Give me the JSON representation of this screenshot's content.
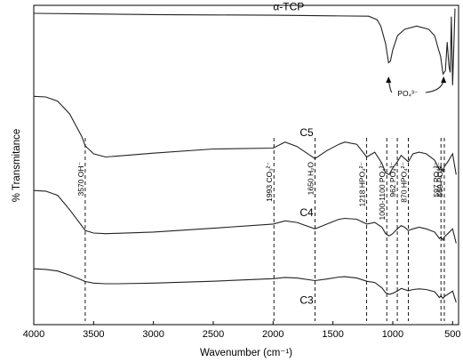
{
  "chart_data": {
    "type": "line",
    "title": "",
    "xlabel": "Wavenumber (cm⁻¹)",
    "ylabel": "% Transmitance",
    "xlim": [
      4000,
      450
    ],
    "x_ticks": [
      "4000",
      "3500",
      "3000",
      "2500",
      "2000",
      "1500",
      "1000",
      "500"
    ],
    "x_tick_values": [
      4000,
      3500,
      3000,
      2500,
      2000,
      1500,
      1000,
      500
    ],
    "grid": false,
    "legend": "none",
    "series": [
      {
        "name": "α-TCP",
        "x": [
          4000,
          3500,
          3000,
          2500,
          2000,
          1500,
          1200,
          1130,
          1100,
          1060,
          1035,
          1020,
          1000,
          960,
          900,
          800,
          700,
          650,
          620,
          600,
          580,
          560,
          545,
          530,
          520,
          510,
          500,
          480
        ],
        "y": [
          97.5,
          97.3,
          97.1,
          97.0,
          96.9,
          96.7,
          96.6,
          95.5,
          93.5,
          88.0,
          82.0,
          82.5,
          86.0,
          90.5,
          92.5,
          93.5,
          92.5,
          90.5,
          86.5,
          84.0,
          78.5,
          79.5,
          88.5,
          81.0,
          79.0,
          96.5,
          75.0,
          99.0
        ]
      },
      {
        "name": "C5",
        "x": [
          4000,
          3900,
          3800,
          3700,
          3600,
          3570,
          3500,
          3400,
          3300,
          3000,
          2500,
          2000,
          1900,
          1800,
          1650,
          1550,
          1450,
          1400,
          1300,
          1218,
          1150,
          1090,
          1060,
          1030,
          1000,
          962,
          930,
          900,
          870,
          830,
          780,
          720,
          650,
          610,
          597,
          580,
          569,
          540,
          500,
          470
        ],
        "y": [
          71.5,
          71.3,
          70.0,
          66.0,
          59.0,
          56.0,
          53.5,
          52.5,
          52.8,
          53.7,
          55.0,
          55.3,
          57.2,
          55.8,
          52.0,
          54.5,
          56.5,
          57.2,
          56.5,
          52.5,
          54.0,
          50.5,
          47.5,
          47.0,
          49.0,
          51.0,
          53.0,
          52.0,
          51.0,
          53.5,
          54.0,
          53.5,
          51.5,
          48.5,
          49.5,
          48.0,
          49.5,
          51.0,
          53.5,
          47.0
        ]
      },
      {
        "name": "C4",
        "x": [
          4000,
          3900,
          3800,
          3700,
          3600,
          3570,
          3500,
          3400,
          3300,
          3000,
          2500,
          2000,
          1900,
          1800,
          1650,
          1550,
          1450,
          1400,
          1300,
          1218,
          1150,
          1090,
          1060,
          1030,
          1000,
          962,
          930,
          900,
          870,
          830,
          780,
          720,
          650,
          610,
          597,
          580,
          569,
          540,
          500,
          470
        ],
        "y": [
          42.0,
          41.8,
          40.5,
          36.0,
          31.0,
          29.5,
          28.7,
          28.5,
          28.6,
          29.0,
          30.2,
          31.5,
          32.5,
          32.0,
          30.0,
          31.5,
          33.0,
          33.3,
          33.0,
          31.5,
          32.0,
          30.5,
          28.5,
          27.8,
          28.5,
          30.0,
          31.0,
          30.5,
          29.5,
          30.0,
          30.5,
          30.0,
          29.0,
          27.0,
          27.5,
          26.5,
          27.5,
          28.5,
          30.0,
          25.5
        ]
      },
      {
        "name": "C3",
        "x": [
          4000,
          3900,
          3800,
          3700,
          3600,
          3570,
          3500,
          3400,
          3300,
          3000,
          2500,
          2000,
          1900,
          1800,
          1650,
          1550,
          1450,
          1400,
          1300,
          1218,
          1150,
          1090,
          1060,
          1030,
          1000,
          962,
          930,
          900,
          870,
          830,
          780,
          720,
          650,
          610,
          597,
          580,
          569,
          540,
          500,
          470
        ],
        "y": [
          17.5,
          17.3,
          16.8,
          15.5,
          14.0,
          13.5,
          13.0,
          12.8,
          12.8,
          13.0,
          13.6,
          14.4,
          14.8,
          14.6,
          13.8,
          14.3,
          14.9,
          15.0,
          14.6,
          13.6,
          13.2,
          11.5,
          10.0,
          9.5,
          9.8,
          10.5,
          11.3,
          11.0,
          10.6,
          11.0,
          11.2,
          11.0,
          10.3,
          8.5,
          9.0,
          8.2,
          8.8,
          9.5,
          10.5,
          7.0
        ]
      }
    ],
    "dashed_lines": [
      {
        "x": 3570,
        "label": "3570 OH⁻"
      },
      {
        "x": 1993,
        "label": "1993 CO₃²⁻"
      },
      {
        "x": 1650,
        "label": "1650 H₂O"
      },
      {
        "x": 1218,
        "label": "1218 HPO₄²⁻"
      },
      {
        "x": 1050,
        "label": "1000-1100 PO₄³⁻"
      },
      {
        "x": 962,
        "label": "962 PO₄³⁻"
      },
      {
        "x": 870,
        "label": "870 HPO₄²⁻"
      },
      {
        "x": 597,
        "label": "597 PO₄³⁻"
      },
      {
        "x": 569,
        "label": "569 PO₄³⁻"
      }
    ],
    "annotations": [
      {
        "text": "PO₄³⁻",
        "at_x": 830
      }
    ]
  }
}
